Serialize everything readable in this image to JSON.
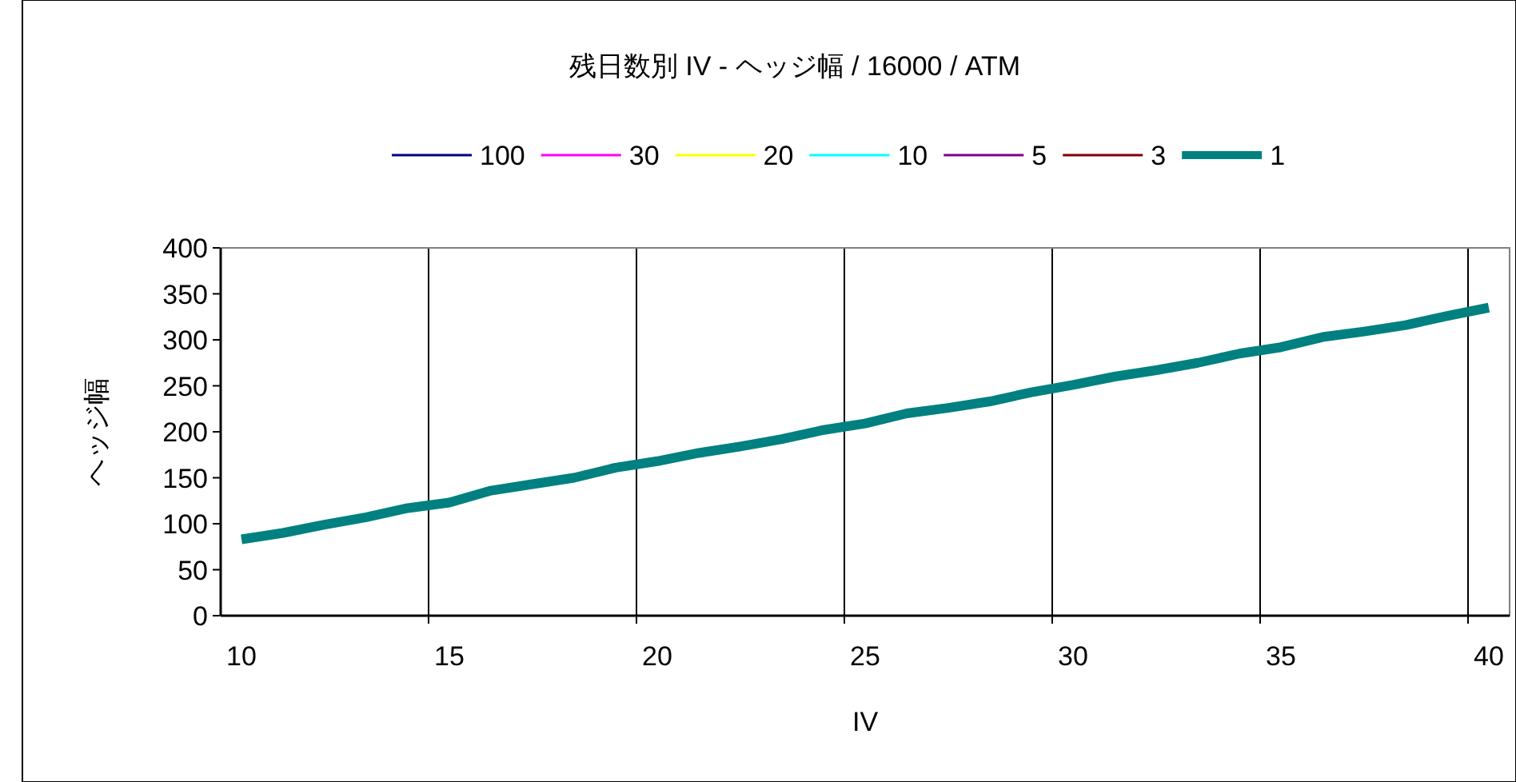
{
  "chart_data": {
    "type": "line",
    "title": "残日数別  IV - ヘッジ幅 / 16000 / ATM",
    "xlabel": "IV",
    "ylabel": "ヘッジ幅",
    "x": [
      10,
      11,
      12,
      13,
      14,
      15,
      16,
      17,
      18,
      19,
      20,
      21,
      22,
      23,
      24,
      25,
      26,
      27,
      28,
      29,
      30,
      31,
      32,
      33,
      34,
      35,
      36,
      37,
      38,
      39,
      40
    ],
    "xlim": [
      9.5,
      40.5
    ],
    "xticks": [
      10,
      {
        "value": 14.5,
        "label": null
      },
      15,
      {
        "value": 19.5,
        "label": null
      },
      20,
      {
        "value": 24.5,
        "label": null
      },
      25,
      {
        "value": 29.5,
        "label": null
      },
      30,
      {
        "value": 34.5,
        "label": null
      },
      35,
      {
        "value": 39.5,
        "label": null
      },
      40
    ],
    "ylim": [
      0,
      400
    ],
    "yticks": [
      0,
      50,
      100,
      150,
      200,
      250,
      300,
      350,
      400
    ],
    "grid": "x",
    "legend": "top",
    "marker": "none",
    "line_style": "solid",
    "series": [
      {
        "name": "100",
        "color": "#000080",
        "values": [
          null,
          null,
          null,
          null,
          null,
          null,
          null,
          null,
          null,
          null,
          null,
          null,
          null,
          null,
          null,
          null,
          null,
          null,
          null,
          null,
          null,
          null,
          null,
          null,
          null,
          null,
          null,
          null,
          null,
          null,
          null
        ]
      },
      {
        "name": "30",
        "color": "#ff00ff",
        "values": [
          null,
          null,
          null,
          null,
          null,
          null,
          null,
          null,
          null,
          null,
          null,
          null,
          null,
          null,
          null,
          null,
          null,
          null,
          null,
          null,
          null,
          null,
          null,
          null,
          null,
          null,
          null,
          null,
          null,
          null,
          null
        ]
      },
      {
        "name": "20",
        "color": "#ffff00",
        "values": [
          null,
          null,
          null,
          null,
          null,
          null,
          null,
          null,
          null,
          null,
          null,
          null,
          null,
          null,
          null,
          null,
          null,
          null,
          null,
          null,
          null,
          null,
          null,
          null,
          null,
          null,
          null,
          null,
          null,
          null,
          null
        ]
      },
      {
        "name": "10",
        "color": "#00ffff",
        "values": [
          null,
          null,
          null,
          null,
          null,
          null,
          null,
          null,
          null,
          null,
          null,
          null,
          null,
          null,
          null,
          null,
          null,
          null,
          null,
          null,
          null,
          null,
          null,
          null,
          null,
          null,
          null,
          null,
          null,
          null,
          null
        ]
      },
      {
        "name": "5",
        "color": "#800080",
        "values": [
          null,
          null,
          null,
          null,
          null,
          null,
          null,
          null,
          null,
          null,
          null,
          null,
          null,
          null,
          null,
          null,
          null,
          null,
          null,
          null,
          null,
          null,
          null,
          null,
          null,
          null,
          null,
          null,
          null,
          null,
          null
        ]
      },
      {
        "name": "3",
        "color": "#800000",
        "values": [
          null,
          null,
          null,
          null,
          null,
          null,
          null,
          null,
          null,
          null,
          null,
          null,
          null,
          null,
          null,
          null,
          null,
          null,
          null,
          null,
          null,
          null,
          null,
          null,
          null,
          null,
          null,
          null,
          null,
          null,
          null
        ]
      },
      {
        "name": "1",
        "color": "#008080",
        "values": [
          83,
          90,
          99,
          107,
          117,
          123,
          136,
          143,
          150,
          161,
          168,
          177,
          184,
          192,
          202,
          209,
          220,
          226,
          233,
          243,
          251,
          260,
          267,
          275,
          285,
          292,
          303,
          309,
          316,
          326,
          335
        ]
      }
    ]
  }
}
